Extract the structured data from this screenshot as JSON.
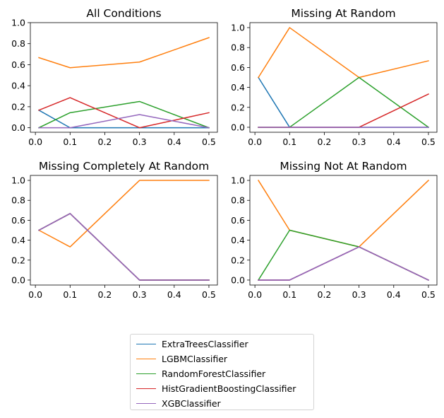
{
  "colors": {
    "ExtraTreesClassifier": "#1f77b4",
    "LGBMClassifier": "#ff7f0e",
    "RandomForestClassifier": "#2ca02c",
    "HistGradientBoostingClassifier": "#d62728",
    "XGBClassifier": "#9467bd"
  },
  "legend": {
    "placement": "bottom-center",
    "entries": [
      "ExtraTreesClassifier",
      "LGBMClassifier",
      "RandomForestClassifier",
      "HistGradientBoostingClassifier",
      "XGBClassifier"
    ]
  },
  "chart_data": [
    {
      "type": "line",
      "title": "All Conditions",
      "x": [
        0.01,
        0.1,
        0.3,
        0.5
      ],
      "xlim": [
        -0.0145,
        0.5245
      ],
      "ylim": [
        -0.043,
        1.0
      ],
      "xticks": [
        "0.0",
        "0.1",
        "0.2",
        "0.3",
        "0.4",
        "0.5"
      ],
      "yticks": [
        "0.0",
        "0.2",
        "0.4",
        "0.6",
        "0.8",
        "1.0"
      ],
      "series": [
        {
          "name": "ExtraTreesClassifier",
          "values": [
            0.167,
            0.0,
            0.0,
            0.0
          ]
        },
        {
          "name": "LGBMClassifier",
          "values": [
            0.667,
            0.571,
            0.625,
            0.857
          ]
        },
        {
          "name": "RandomForestClassifier",
          "values": [
            0.0,
            0.143,
            0.25,
            0.0
          ]
        },
        {
          "name": "HistGradientBoostingClassifier",
          "values": [
            0.167,
            0.286,
            0.0,
            0.143
          ]
        },
        {
          "name": "XGBClassifier",
          "values": [
            0.0,
            0.0,
            0.125,
            0.0
          ]
        }
      ]
    },
    {
      "type": "line",
      "title": "Missing At Random",
      "x": [
        0.01,
        0.1,
        0.3,
        0.5
      ],
      "xlim": [
        -0.0145,
        0.5245
      ],
      "ylim": [
        -0.05,
        1.05
      ],
      "xticks": [
        "0.0",
        "0.1",
        "0.2",
        "0.3",
        "0.4",
        "0.5"
      ],
      "yticks": [
        "0.0",
        "0.2",
        "0.4",
        "0.6",
        "0.8",
        "1.0"
      ],
      "series": [
        {
          "name": "ExtraTreesClassifier",
          "values": [
            0.5,
            0.0,
            0.0,
            0.0
          ]
        },
        {
          "name": "LGBMClassifier",
          "values": [
            0.5,
            1.0,
            0.5,
            0.667
          ]
        },
        {
          "name": "RandomForestClassifier",
          "values": [
            0.0,
            0.0,
            0.5,
            0.0
          ]
        },
        {
          "name": "HistGradientBoostingClassifier",
          "values": [
            0.0,
            0.0,
            0.0,
            0.333
          ]
        },
        {
          "name": "XGBClassifier",
          "values": [
            0.0,
            0.0,
            0.0,
            0.0
          ]
        }
      ]
    },
    {
      "type": "line",
      "title": "Missing Completely At Random",
      "x": [
        0.01,
        0.1,
        0.3,
        0.5
      ],
      "xlim": [
        -0.0145,
        0.5245
      ],
      "ylim": [
        -0.05,
        1.05
      ],
      "xticks": [
        "0.0",
        "0.1",
        "0.2",
        "0.3",
        "0.4",
        "0.5"
      ],
      "yticks": [
        "0.0",
        "0.2",
        "0.4",
        "0.6",
        "0.8",
        "1.0"
      ],
      "series": [
        {
          "name": "ExtraTreesClassifier",
          "values": [
            0.5,
            0.667,
            0.0,
            0.0
          ]
        },
        {
          "name": "LGBMClassifier",
          "values": [
            0.5,
            0.333,
            1.0,
            1.0
          ]
        },
        {
          "name": "RandomForestClassifier",
          "values": [
            0.5,
            0.667,
            0.0,
            0.0
          ]
        },
        {
          "name": "HistGradientBoostingClassifier",
          "values": [
            0.5,
            0.667,
            0.0,
            0.0
          ]
        },
        {
          "name": "XGBClassifier",
          "values": [
            0.5,
            0.667,
            0.0,
            0.0
          ]
        }
      ]
    },
    {
      "type": "line",
      "title": "Missing Not At Random",
      "x": [
        0.01,
        0.1,
        0.3,
        0.5
      ],
      "xlim": [
        -0.0145,
        0.5245
      ],
      "ylim": [
        -0.05,
        1.05
      ],
      "xticks": [
        "0.0",
        "0.1",
        "0.2",
        "0.3",
        "0.4",
        "0.5"
      ],
      "yticks": [
        "0.0",
        "0.2",
        "0.4",
        "0.6",
        "0.8",
        "1.0"
      ],
      "series": [
        {
          "name": "ExtraTreesClassifier",
          "values": [
            0.0,
            0.0,
            0.333,
            0.0
          ]
        },
        {
          "name": "LGBMClassifier",
          "values": [
            1.0,
            0.5,
            0.333,
            1.0
          ]
        },
        {
          "name": "RandomForestClassifier",
          "values": [
            0.0,
            0.5,
            0.333,
            0.0
          ]
        },
        {
          "name": "HistGradientBoostingClassifier",
          "values": [
            0.0,
            0.0,
            0.333,
            0.0
          ]
        },
        {
          "name": "XGBClassifier",
          "values": [
            0.0,
            0.0,
            0.333,
            0.0
          ]
        }
      ]
    }
  ]
}
